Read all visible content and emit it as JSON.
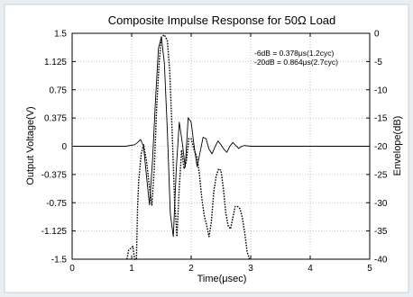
{
  "chart_data": {
    "type": "line",
    "title": "Composite Impulse Response for 50Ω Load",
    "xlabel": "Time(μsec)",
    "ylabel": "Output Voltage(V)",
    "ylabel_right": "Envelope(dB)",
    "xlim": [
      0,
      5
    ],
    "ylim": [
      -1.5,
      1.5
    ],
    "ylim_right": [
      -40,
      0
    ],
    "x_ticks": [
      "0",
      "1",
      "2",
      "3",
      "4",
      "5"
    ],
    "y_ticks": [
      "1.5",
      "1.125",
      "0.75",
      "0.375",
      "0",
      "-0.375",
      "-0.75",
      "-1.125",
      "-1.5"
    ],
    "y_ticks_right": [
      "0",
      "-5",
      "-10",
      "-15",
      "-20",
      "-25",
      "-30",
      "-35",
      "-40"
    ],
    "grid": true,
    "annotations": [
      "-6dB = 0.378μs(1.2cyc)",
      "-20dB = 0.864μs(2.7cyc)"
    ],
    "series": [
      {
        "style": "solid",
        "x": [
          0,
          0.9,
          1.05,
          1.1,
          1.15,
          1.2,
          1.25,
          1.3,
          1.35,
          1.4,
          1.45,
          1.5,
          1.55,
          1.6,
          1.65,
          1.7,
          1.75,
          1.8,
          1.85,
          1.9,
          1.95,
          2.0,
          2.05,
          2.1,
          2.15,
          2.2,
          2.25,
          2.3,
          2.35,
          2.4,
          2.45,
          2.5,
          2.55,
          2.6,
          2.65,
          2.7,
          2.75,
          2.8,
          2.85,
          2.9,
          3.0,
          3.2,
          3.6,
          5.0
        ],
        "values": [
          0,
          0,
          0.02,
          0.05,
          0.09,
          0.0,
          -0.4,
          -0.78,
          -0.2,
          0.6,
          1.3,
          1.45,
          1.1,
          0.2,
          -0.9,
          -1.2,
          -0.3,
          0.32,
          0.05,
          -0.28,
          0.38,
          0.32,
          0.0,
          -0.27,
          -0.08,
          0.12,
          0.1,
          -0.04,
          -0.1,
          -0.01,
          0.07,
          0.02,
          -0.04,
          -0.08,
          0.0,
          0.05,
          0.01,
          -0.03,
          0.0,
          0.01,
          0.0,
          0.0,
          0.0,
          0.0
        ]
      },
      {
        "style": "dotted",
        "x": [
          0.92,
          0.95,
          1.02,
          1.05,
          1.08,
          1.1,
          1.12,
          1.16,
          1.2,
          1.25,
          1.3,
          1.34,
          1.38,
          1.42,
          1.46,
          1.5,
          1.55,
          1.6,
          1.64,
          1.68,
          1.72,
          1.76,
          1.8,
          1.84,
          1.88,
          1.92,
          1.96,
          2.0,
          2.05,
          2.1,
          2.14,
          2.18,
          2.22,
          2.26,
          2.3,
          2.34,
          2.38,
          2.42,
          2.46,
          2.5,
          2.54,
          2.58,
          2.62,
          2.66,
          2.7,
          2.74,
          2.78,
          2.82,
          2.86,
          2.9,
          2.94,
          2.98
        ],
        "values": [
          -1.5,
          -1.38,
          -1.33,
          -1.5,
          -1.5,
          -0.8,
          -0.45,
          -0.1,
          0.02,
          -0.2,
          -0.55,
          -0.78,
          -0.3,
          0.5,
          1.1,
          1.45,
          1.48,
          1.4,
          1.0,
          0.2,
          -0.7,
          -1.2,
          -0.55,
          -0.05,
          -0.3,
          -0.2,
          0.1,
          0.1,
          -0.05,
          -0.15,
          -0.38,
          -0.7,
          -0.92,
          -1.05,
          -1.2,
          -1.0,
          -0.6,
          -0.4,
          -0.3,
          -0.32,
          -0.55,
          -0.88,
          -1.05,
          -1.1,
          -0.95,
          -0.8,
          -0.8,
          -0.83,
          -0.95,
          -1.15,
          -1.4,
          -1.5
        ]
      }
    ]
  }
}
